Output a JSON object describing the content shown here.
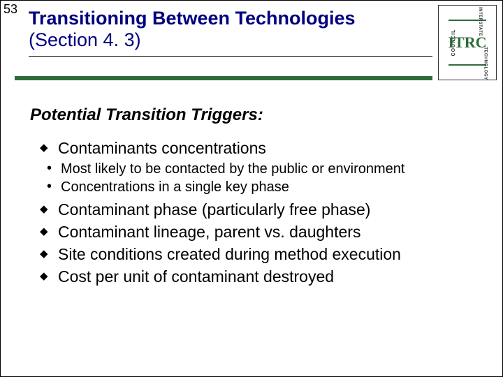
{
  "page_number": "53",
  "title_bold": "Transitioning Between Technologies",
  "title_rest": "(Section 4. 3)",
  "colors": {
    "title": "#000080",
    "rule_thick": "#2e6b3a",
    "rule_thin": "#000000",
    "logo_accent": "#2e6b3a",
    "text": "#000000",
    "background": "#ffffff"
  },
  "logo": {
    "left_text": "COUNCIL",
    "center_text": "ITRC",
    "right_top": "INTERSTATE",
    "right_bottom": "TECHNOLOGY"
  },
  "section_heading": "Potential Transition Triggers:",
  "bullets": [
    {
      "text": "Contaminants concentrations",
      "sub": [
        "Most likely to be contacted by the public or environment",
        "Concentrations in a single key phase"
      ]
    },
    {
      "text": "Contaminant phase (particularly free phase)"
    },
    {
      "text": "Contaminant lineage, parent vs. daughters"
    },
    {
      "text": "Site conditions created during method execution"
    },
    {
      "text": "Cost per unit of contaminant destroyed"
    }
  ]
}
